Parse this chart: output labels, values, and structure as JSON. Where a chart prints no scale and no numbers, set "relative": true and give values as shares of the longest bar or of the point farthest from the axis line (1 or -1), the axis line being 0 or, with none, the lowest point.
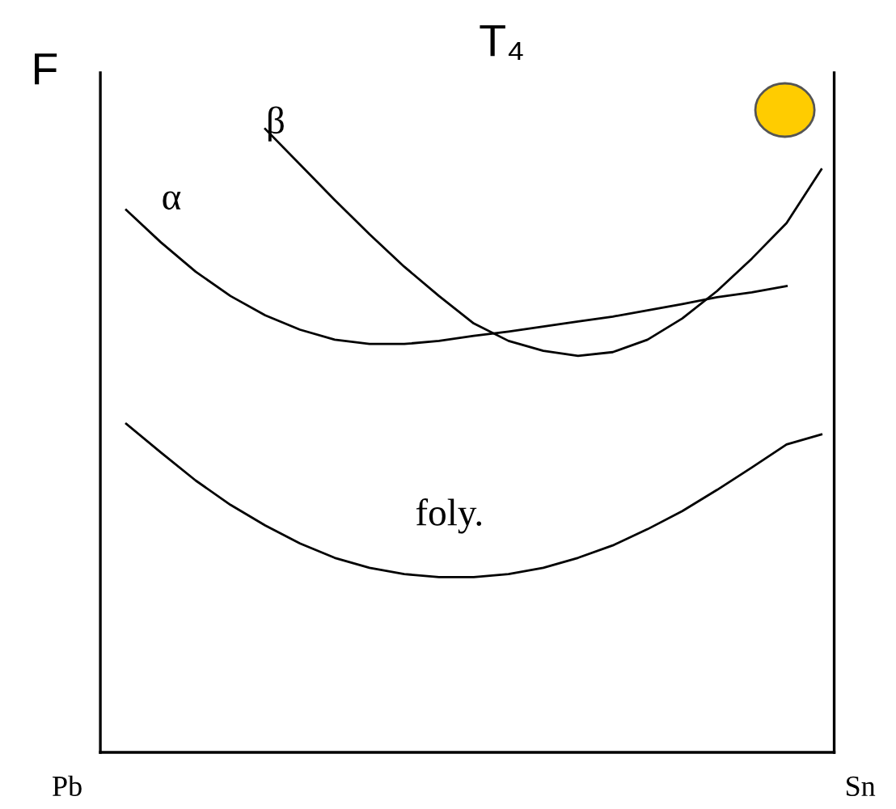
{
  "chart_data": {
    "type": "line",
    "title": "T₄",
    "ylabel": "F",
    "relative": true,
    "marker": "none",
    "line_style": "solid",
    "categories": [
      null,
      null,
      null,
      null,
      null,
      null,
      null,
      null,
      null,
      null,
      null,
      null,
      null,
      null,
      null,
      null,
      null,
      null,
      null,
      null,
      null
    ],
    "series": [
      {
        "name": "α",
        "color": "#000000",
        "values": [
          0.87,
          0.818,
          0.771,
          0.732,
          0.701,
          0.678,
          0.662,
          0.655,
          0.655,
          0.66,
          0.668,
          0.675,
          0.683,
          0.691,
          0.699,
          0.709,
          0.719,
          0.73,
          0.738,
          0.748,
          null
        ]
      },
      {
        "name": "β",
        "color": "#000000",
        "values": [
          null,
          null,
          null,
          null,
          1.0,
          0.943,
          0.886,
          0.831,
          0.779,
          0.732,
          0.688,
          0.66,
          0.644,
          0.636,
          0.642,
          0.662,
          0.696,
          0.74,
          0.792,
          0.849,
          0.935
        ]
      },
      {
        "name": "foly.",
        "color": "#000000",
        "values": [
          0.527,
          0.481,
          0.436,
          0.397,
          0.364,
          0.335,
          0.312,
          0.296,
          0.286,
          0.281,
          0.281,
          0.286,
          0.296,
          0.312,
          0.332,
          0.358,
          0.387,
          0.421,
          0.457,
          0.494,
          0.51
        ]
      }
    ],
    "annotations": [
      "Pb",
      "Sn"
    ]
  }
}
